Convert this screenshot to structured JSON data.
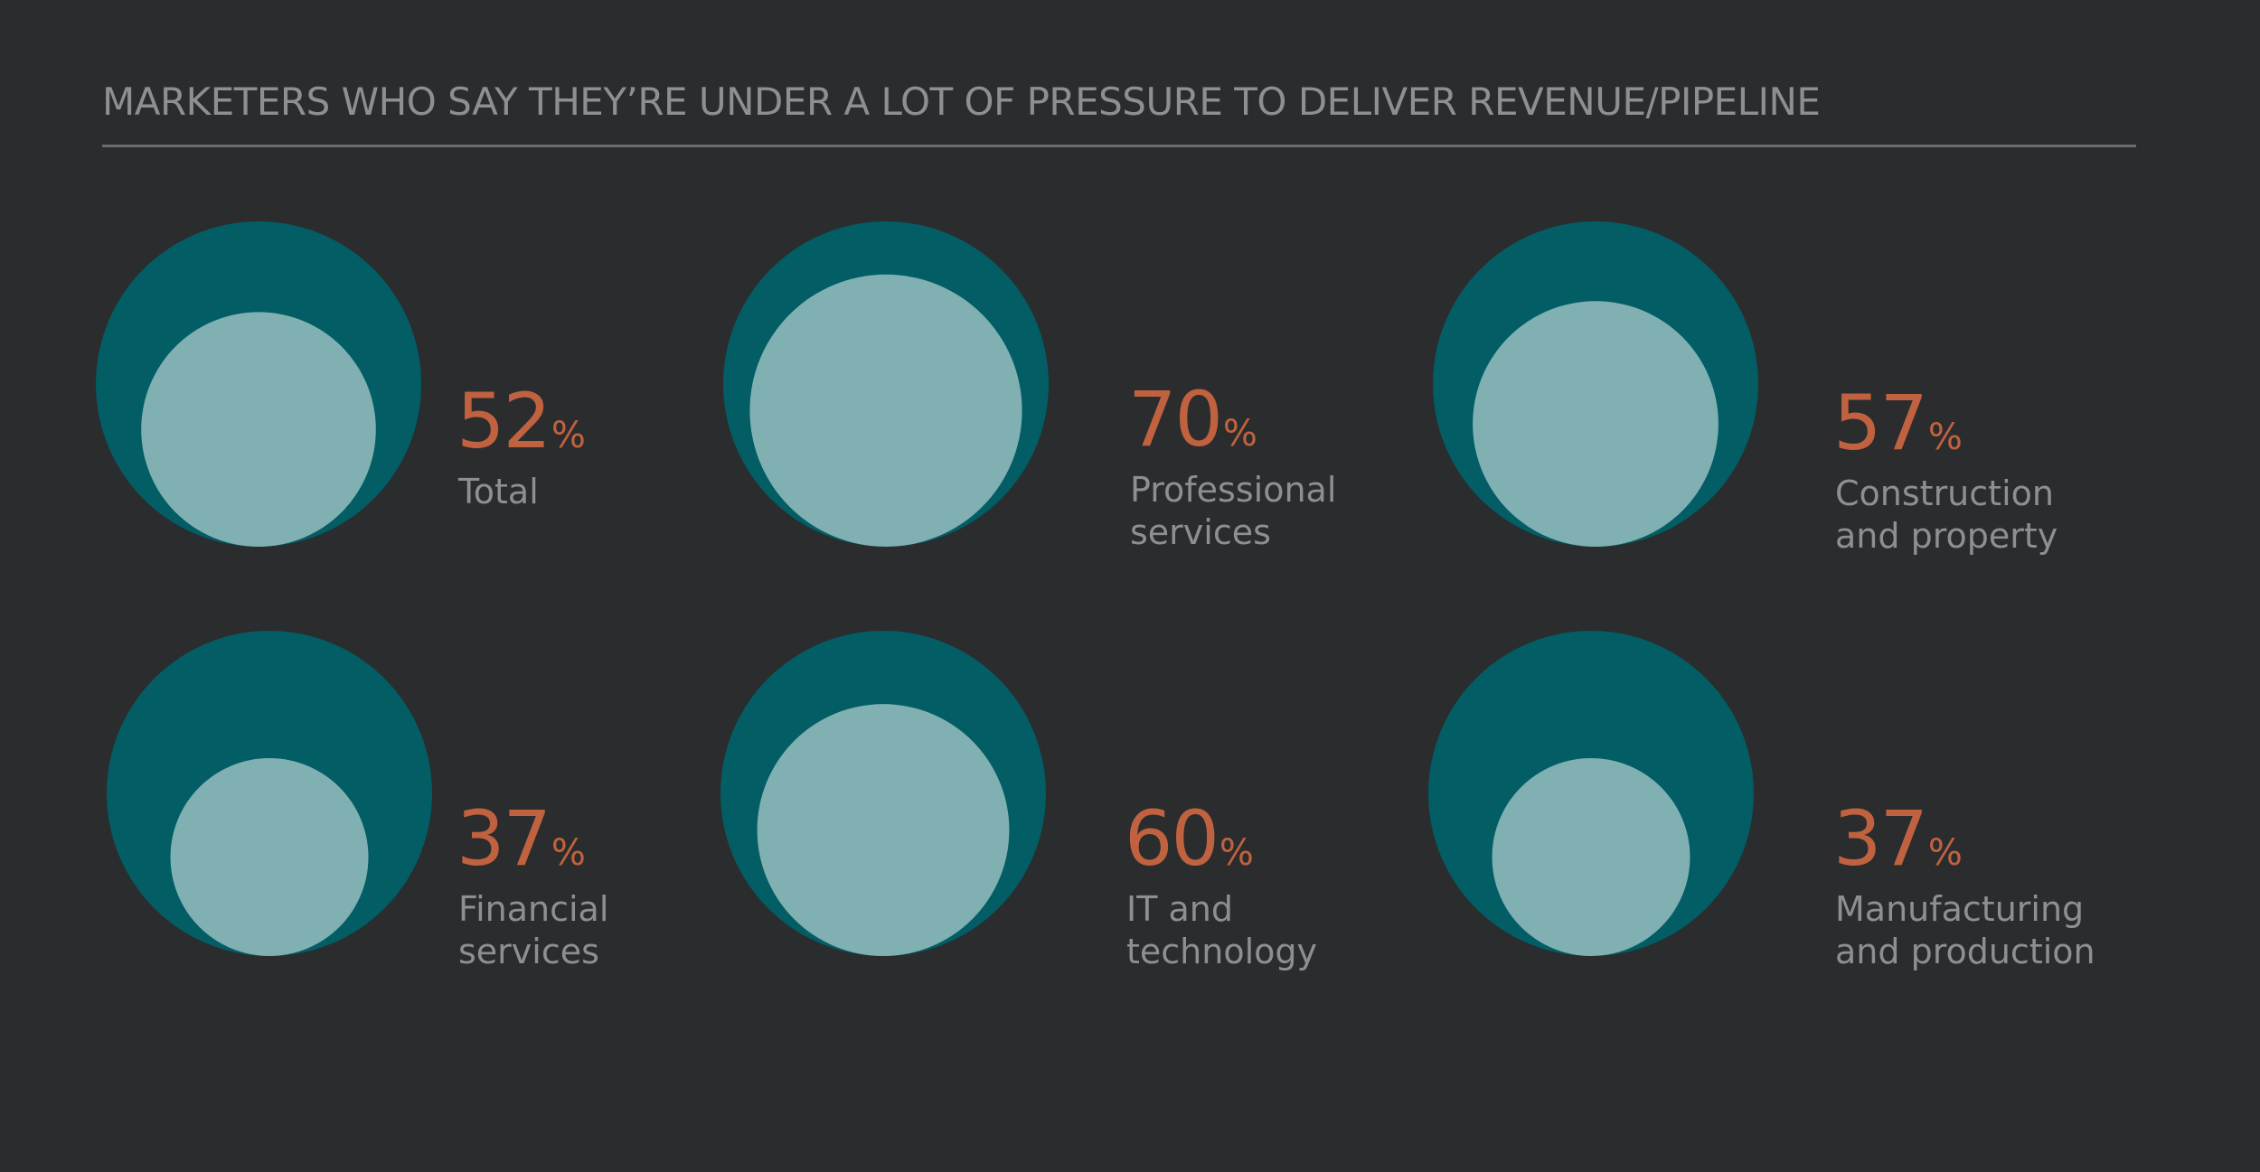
{
  "chart_data": {
    "type": "bubble",
    "title": "MARKETERS WHO SAY THEY’RE UNDER A LOT OF PRESSURE TO DELIVER REVENUE/PIPELINE",
    "value_suffix": "%",
    "max_value": 100,
    "categories": [
      {
        "label_lines": [
          "Total"
        ],
        "value": 52
      },
      {
        "label_lines": [
          "Professional",
          "services"
        ],
        "value": 70
      },
      {
        "label_lines": [
          "Construction",
          "and property"
        ],
        "value": 57
      },
      {
        "label_lines": [
          "Financial",
          "services"
        ],
        "value": 37
      },
      {
        "label_lines": [
          "IT and",
          "technology"
        ],
        "value": 60
      },
      {
        "label_lines": [
          "Manufacturing",
          "and production"
        ],
        "value": 37
      }
    ]
  },
  "colors": {
    "background": "#2b2c2e",
    "outer_circle": "#025d65",
    "inner_circle": "#80b0b2",
    "value": "#c0623f",
    "label": "#8e8f91",
    "title": "#8e8f91",
    "rule": "#6c6d70"
  }
}
